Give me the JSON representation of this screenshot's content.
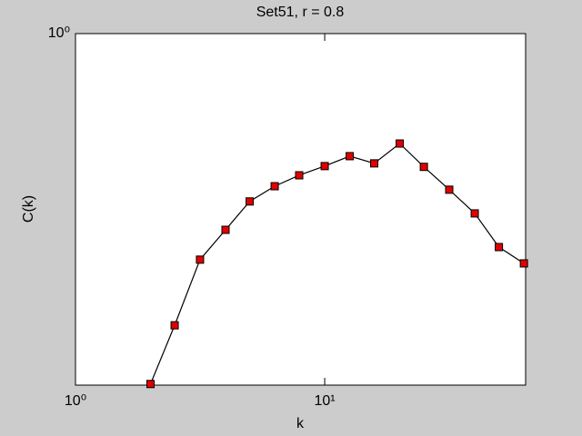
{
  "chart_data": {
    "type": "line",
    "title": "Set51, r = 0.8",
    "x_label": "k",
    "y_label": "C(k)",
    "x": [
      2,
      2.5,
      3.16,
      4,
      5,
      6.3,
      7.9,
      10,
      12.6,
      15.8,
      20,
      25,
      31.6,
      40,
      50,
      63
    ],
    "series": [
      {
        "color": "#e00000",
        "values": [
          0.181,
          0.241,
          0.332,
          0.384,
          0.441,
          0.475,
          0.501,
          0.524,
          0.55,
          0.531,
          0.585,
          0.522,
          0.467,
          0.416,
          0.353,
          0.326
        ]
      }
    ],
    "xlim": [
      1,
      64
    ],
    "ylim": [
      0.18,
      1
    ],
    "xticks": [
      {
        "value": 1,
        "label": "10⁰"
      },
      {
        "value": 10,
        "label": "10¹"
      }
    ],
    "yticks": [
      {
        "value": 1,
        "label": "10⁰"
      }
    ],
    "xscale": "log",
    "yscale": "log",
    "grid": false
  }
}
